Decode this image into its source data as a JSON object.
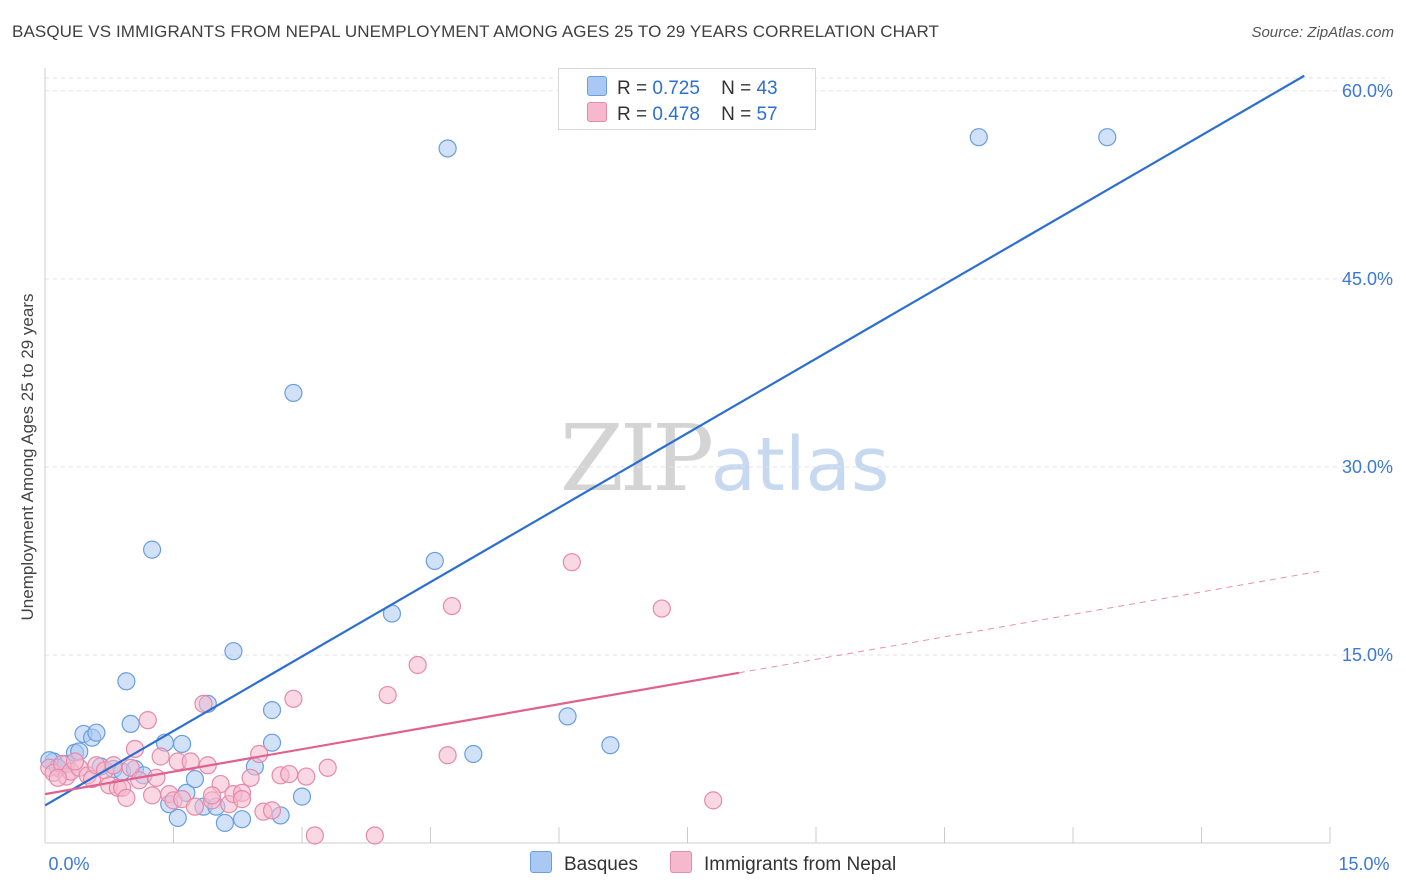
{
  "title": "BASQUE VS IMMIGRANTS FROM NEPAL UNEMPLOYMENT AMONG AGES 25 TO 29 YEARS CORRELATION CHART",
  "source": "Source: ZipAtlas.com",
  "watermark": {
    "zip": "ZIP",
    "atlas": "atlas"
  },
  "colors": {
    "basque": "#2c6fd0",
    "basque_fill": "#a9c8f3",
    "nepal": "#e0608e",
    "nepal_fill": "#f5b8cc",
    "tick_text": "#3b78d8",
    "grid": "#e3e3e3"
  },
  "legend_top": [
    {
      "series": "basque",
      "r_label": "R =",
      "r_value": "0.725",
      "n_label": "N =",
      "n_value": "43"
    },
    {
      "series": "nepal",
      "r_label": "R =",
      "r_value": "0.478",
      "n_label": "N =",
      "n_value": "57"
    }
  ],
  "legend_bottom": [
    "Basques",
    "Immigrants from Nepal"
  ],
  "chart_data": {
    "type": "scatter",
    "title": "BASQUE VS IMMIGRANTS FROM NEPAL UNEMPLOYMENT AMONG AGES 25 TO 29 YEARS CORRELATION CHART",
    "xlabel": "",
    "ylabel": "Unemployment Among Ages 25 to 29 years",
    "xlim": [
      0,
      15
    ],
    "ylim": [
      0,
      61.5
    ],
    "x_tick_labels": [
      {
        "value": 0,
        "label": "0.0%"
      },
      {
        "value": 15,
        "label": "15.0%"
      }
    ],
    "y_tick_labels": [
      {
        "value": 15,
        "label": "15.0%"
      },
      {
        "value": 30,
        "label": "30.0%"
      },
      {
        "value": 45,
        "label": "45.0%"
      },
      {
        "value": 60,
        "label": "60.0%"
      }
    ],
    "x_minor_ticks": [
      1.5,
      3.0,
      4.5,
      6.0,
      7.5,
      9.0,
      10.5,
      12.0,
      13.5,
      15.0
    ],
    "grid": "horizontal dashed",
    "legend": "top-center",
    "series": [
      {
        "name": "Basques",
        "key": "basque",
        "R": 0.725,
        "N": 43,
        "trend": {
          "x0": 0,
          "y0": 3.0,
          "x1": 14.7,
          "y1": 61.2,
          "dashed_from_x": null
        },
        "points": [
          [
            0.1,
            6.5
          ],
          [
            0.25,
            6.3
          ],
          [
            0.35,
            7.2
          ],
          [
            0.45,
            8.7
          ],
          [
            0.55,
            8.4
          ],
          [
            0.6,
            8.8
          ],
          [
            0.65,
            6.1
          ],
          [
            0.8,
            5.9
          ],
          [
            0.9,
            5.7
          ],
          [
            0.95,
            12.9
          ],
          [
            1.0,
            9.5
          ],
          [
            1.05,
            5.9
          ],
          [
            1.15,
            5.4
          ],
          [
            1.25,
            23.4
          ],
          [
            1.4,
            8.0
          ],
          [
            1.45,
            3.1
          ],
          [
            1.55,
            2.0
          ],
          [
            1.6,
            7.9
          ],
          [
            1.65,
            4.0
          ],
          [
            1.75,
            5.1
          ],
          [
            1.85,
            2.9
          ],
          [
            1.9,
            11.1
          ],
          [
            2.0,
            2.9
          ],
          [
            2.1,
            1.6
          ],
          [
            2.2,
            15.3
          ],
          [
            2.3,
            1.9
          ],
          [
            2.45,
            6.1
          ],
          [
            2.65,
            8.0
          ],
          [
            2.65,
            10.6
          ],
          [
            2.9,
            35.9
          ],
          [
            3.0,
            3.7
          ],
          [
            4.05,
            18.3
          ],
          [
            4.55,
            22.5
          ],
          [
            4.7,
            55.4
          ],
          [
            5.0,
            7.1
          ],
          [
            6.1,
            10.1
          ],
          [
            6.6,
            7.8
          ],
          [
            10.9,
            56.3
          ],
          [
            12.4,
            56.3
          ],
          [
            0.05,
            6.6
          ],
          [
            0.15,
            6.0
          ],
          [
            0.4,
            7.3
          ],
          [
            2.75,
            2.2
          ]
        ]
      },
      {
        "name": "Immigrants from Nepal",
        "key": "nepal",
        "R": 0.478,
        "N": 57,
        "trend": {
          "x0": 0,
          "y0": 3.9,
          "x1": 14.9,
          "y1": 21.7,
          "dashed_from_x": 8.1
        },
        "points": [
          [
            0.05,
            6.0
          ],
          [
            0.1,
            5.6
          ],
          [
            0.2,
            6.3
          ],
          [
            0.25,
            5.3
          ],
          [
            0.3,
            5.7
          ],
          [
            0.4,
            6.0
          ],
          [
            0.5,
            5.4
          ],
          [
            0.55,
            5.1
          ],
          [
            0.6,
            6.2
          ],
          [
            0.7,
            5.8
          ],
          [
            0.75,
            4.6
          ],
          [
            0.8,
            6.2
          ],
          [
            0.85,
            4.4
          ],
          [
            0.9,
            4.4
          ],
          [
            0.95,
            3.6
          ],
          [
            1.0,
            6.0
          ],
          [
            1.05,
            7.5
          ],
          [
            1.1,
            5.0
          ],
          [
            1.2,
            9.8
          ],
          [
            1.25,
            3.8
          ],
          [
            1.3,
            5.2
          ],
          [
            1.35,
            6.9
          ],
          [
            1.45,
            3.9
          ],
          [
            1.5,
            3.4
          ],
          [
            1.55,
            6.5
          ],
          [
            1.6,
            3.5
          ],
          [
            1.7,
            6.5
          ],
          [
            1.75,
            2.9
          ],
          [
            1.85,
            11.1
          ],
          [
            1.9,
            6.2
          ],
          [
            1.95,
            3.4
          ],
          [
            2.05,
            4.7
          ],
          [
            2.15,
            3.1
          ],
          [
            2.2,
            3.9
          ],
          [
            2.3,
            4.0
          ],
          [
            2.3,
            3.5
          ],
          [
            2.4,
            5.2
          ],
          [
            2.5,
            7.1
          ],
          [
            2.55,
            2.5
          ],
          [
            2.65,
            2.6
          ],
          [
            2.75,
            5.4
          ],
          [
            2.9,
            11.5
          ],
          [
            3.05,
            5.3
          ],
          [
            3.15,
            0.6
          ],
          [
            3.3,
            6.0
          ],
          [
            3.85,
            0.6
          ],
          [
            4.0,
            11.8
          ],
          [
            4.35,
            14.2
          ],
          [
            4.7,
            7.0
          ],
          [
            4.75,
            18.9
          ],
          [
            6.15,
            22.4
          ],
          [
            7.2,
            18.7
          ],
          [
            7.8,
            3.4
          ],
          [
            0.15,
            5.2
          ],
          [
            0.35,
            6.5
          ],
          [
            1.95,
            3.8
          ],
          [
            2.85,
            5.5
          ]
        ]
      }
    ]
  }
}
